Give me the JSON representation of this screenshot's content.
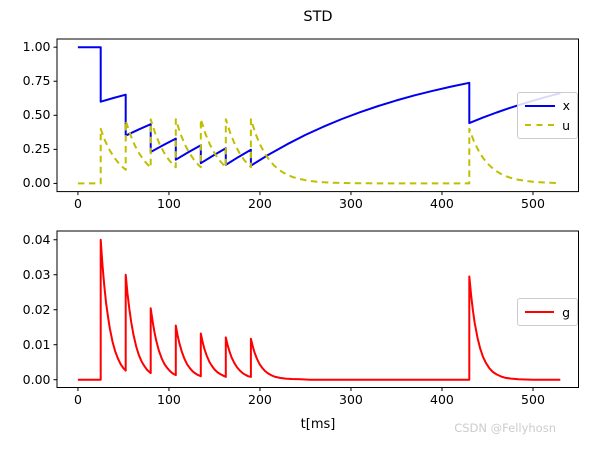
{
  "title": "STD",
  "xlabel": "t[ms]",
  "watermark": "CSDN @Fellyhosn",
  "colors": {
    "x_line": "#0000f0",
    "u_line": "#bfbf00",
    "g_line": "#ff0000",
    "axis": "#000000",
    "watermark": "#cccccc",
    "legend_border": "#cccccc"
  },
  "chart_data": [
    {
      "type": "line",
      "title": "STD",
      "xlabel": "",
      "ylabel": "",
      "xlim": [
        -23,
        550
      ],
      "ylim": [
        -0.06,
        1.06
      ],
      "grid": false,
      "xticks": [
        0,
        100,
        200,
        300,
        400,
        500
      ],
      "xtick_labels": [
        "0",
        "100",
        "200",
        "300",
        "400",
        "500"
      ],
      "yticks": [
        0,
        0.25,
        0.5,
        0.75,
        1.0
      ],
      "ytick_labels": [
        "0.00",
        "0.25",
        "0.50",
        "0.75",
        "1.00"
      ],
      "legend": {
        "position": "center right",
        "entries": [
          {
            "label": "x",
            "color": "#0000f0",
            "dash": "solid"
          },
          {
            "label": "u",
            "color": "#bfbf00",
            "dash": "dashed"
          }
        ]
      },
      "spike_times_ms": [
        25,
        52.5,
        80,
        107.5,
        135,
        162.5,
        190,
        430
      ],
      "series": [
        {
          "name": "x",
          "color": "#0000f0",
          "dash": "solid",
          "points": [
            [
              0,
              1
            ],
            [
              25,
              1
            ],
            [
              25,
              0.6
            ],
            [
              39,
              0.627
            ],
            [
              52.5,
              0.6514
            ],
            [
              52.5,
              0.3513
            ],
            [
              66,
              0.3936
            ],
            [
              80,
              0.4346
            ],
            [
              80,
              0.2304
            ],
            [
              94,
              0.2823
            ],
            [
              107.5,
              0.3293
            ],
            [
              107.5,
              0.1741
            ],
            [
              121,
              0.228
            ],
            [
              135,
              0.2802
            ],
            [
              135,
              0.1481
            ],
            [
              149,
              0.2056
            ],
            [
              162.5,
              0.2575
            ],
            [
              162.5,
              0.1361
            ],
            [
              176,
              0.1925
            ],
            [
              190,
              0.2471
            ],
            [
              190,
              0.1306
            ],
            [
              210,
              0.2133
            ],
            [
              230,
              0.2882
            ],
            [
              250,
              0.356
            ],
            [
              270,
              0.4173
            ],
            [
              290,
              0.4727
            ],
            [
              310,
              0.5229
            ],
            [
              330,
              0.5683
            ],
            [
              350,
              0.6094
            ],
            [
              370,
              0.6465
            ],
            [
              390,
              0.6801
            ],
            [
              410,
              0.7106
            ],
            [
              430,
              0.7382
            ],
            [
              430,
              0.4429
            ],
            [
              445,
              0.4832
            ],
            [
              460,
              0.5205
            ],
            [
              475,
              0.5551
            ],
            [
              490,
              0.5873
            ],
            [
              510,
              0.6266
            ],
            [
              530,
              0.6621
            ]
          ]
        },
        {
          "name": "u",
          "color": "#bfbf00",
          "dash": "dashed",
          "points": [
            [
              0,
              0
            ],
            [
              25,
              0
            ],
            [
              25,
              0.4
            ],
            [
              30,
              0.3115
            ],
            [
              35,
              0.2426
            ],
            [
              40,
              0.189
            ],
            [
              45,
              0.1472
            ],
            [
              50,
              0.1146
            ],
            [
              52.5,
              0.1011
            ],
            [
              52.5,
              0.4607
            ],
            [
              57.5,
              0.3588
            ],
            [
              62.5,
              0.2794
            ],
            [
              67.5,
              0.2176
            ],
            [
              72.5,
              0.1695
            ],
            [
              77.5,
              0.132
            ],
            [
              80,
              0.1165
            ],
            [
              80,
              0.4699
            ],
            [
              85,
              0.366
            ],
            [
              90,
              0.285
            ],
            [
              95,
              0.222
            ],
            [
              100,
              0.1729
            ],
            [
              105,
              0.1346
            ],
            [
              107.5,
              0.1188
            ],
            [
              107.5,
              0.4713
            ],
            [
              112.5,
              0.367
            ],
            [
              117.5,
              0.2859
            ],
            [
              122.5,
              0.2226
            ],
            [
              127.5,
              0.1734
            ],
            [
              132.5,
              0.135
            ],
            [
              135,
              0.1192
            ],
            [
              135,
              0.4715
            ],
            [
              140,
              0.3672
            ],
            [
              145,
              0.286
            ],
            [
              150,
              0.2227
            ],
            [
              155,
              0.1735
            ],
            [
              160,
              0.1351
            ],
            [
              162.5,
              0.1192
            ],
            [
              162.5,
              0.4716
            ],
            [
              167.5,
              0.3673
            ],
            [
              172.5,
              0.2861
            ],
            [
              177.5,
              0.2228
            ],
            [
              182.5,
              0.1735
            ],
            [
              187.5,
              0.1351
            ],
            [
              190,
              0.1192
            ],
            [
              190,
              0.4716
            ],
            [
              195,
              0.3673
            ],
            [
              200,
              0.2861
            ],
            [
              205,
              0.2228
            ],
            [
              210,
              0.1735
            ],
            [
              215,
              0.1351
            ],
            [
              220,
              0.1052
            ],
            [
              225,
              0.082
            ],
            [
              230,
              0.0638
            ],
            [
              235,
              0.0497
            ],
            [
              240,
              0.0387
            ],
            [
              250,
              0.0235
            ],
            [
              260,
              0.0142
            ],
            [
              270,
              0.0086
            ],
            [
              280,
              0.0052
            ],
            [
              290,
              0.0032
            ],
            [
              300,
              0.0019
            ],
            [
              320,
              0.0007
            ],
            [
              340,
              0.0003
            ],
            [
              360,
              0.0001
            ],
            [
              380,
              0
            ],
            [
              430,
              0
            ],
            [
              430,
              0.4
            ],
            [
              435,
              0.3115
            ],
            [
              440,
              0.2426
            ],
            [
              445,
              0.189
            ],
            [
              450,
              0.1472
            ],
            [
              455,
              0.1146
            ],
            [
              460,
              0.0893
            ],
            [
              465,
              0.0695
            ],
            [
              470,
              0.0541
            ],
            [
              475,
              0.0422
            ],
            [
              480,
              0.0328
            ],
            [
              485,
              0.0256
            ],
            [
              490,
              0.0199
            ],
            [
              495,
              0.0155
            ],
            [
              500,
              0.0121
            ],
            [
              510,
              0.0073
            ],
            [
              520,
              0.0044
            ],
            [
              530,
              0.0027
            ]
          ]
        }
      ]
    },
    {
      "type": "line",
      "title": "",
      "xlabel": "t[ms]",
      "ylabel": "",
      "xlim": [
        -23,
        550
      ],
      "ylim": [
        -0.00223,
        0.0425
      ],
      "grid": false,
      "xticks": [
        0,
        100,
        200,
        300,
        400,
        500
      ],
      "xtick_labels": [
        "0",
        "100",
        "200",
        "300",
        "400",
        "500"
      ],
      "yticks": [
        0,
        0.01,
        0.02,
        0.03,
        0.04
      ],
      "ytick_labels": [
        "0.00",
        "0.01",
        "0.02",
        "0.03",
        "0.04"
      ],
      "legend": {
        "position": "center right",
        "entries": [
          {
            "label": "g",
            "color": "#ff0000",
            "dash": "solid"
          }
        ]
      },
      "series": [
        {
          "name": "g",
          "color": "#ff0000",
          "dash": "solid",
          "points": [
            [
              0,
              0
            ],
            [
              25,
              0
            ],
            [
              25,
              0.04
            ],
            [
              27,
              0.0327
            ],
            [
              29,
              0.0268
            ],
            [
              31,
              0.0219
            ],
            [
              33,
              0.018
            ],
            [
              35,
              0.0147
            ],
            [
              38,
              0.0109
            ],
            [
              41,
              0.0081
            ],
            [
              44,
              0.006
            ],
            [
              47,
              0.0044
            ],
            [
              50,
              0.0033
            ],
            [
              52.5,
              0.0026
            ],
            [
              52.5,
              0.03
            ],
            [
              54.5,
              0.0246
            ],
            [
              56.5,
              0.0201
            ],
            [
              58.5,
              0.0165
            ],
            [
              61,
              0.0128
            ],
            [
              64,
              0.0095
            ],
            [
              67,
              0.007
            ],
            [
              70,
              0.0052
            ],
            [
              73,
              0.0039
            ],
            [
              76,
              0.0028
            ],
            [
              80,
              0.0019
            ],
            [
              80,
              0.0204
            ],
            [
              82,
              0.0167
            ],
            [
              84,
              0.0137
            ],
            [
              86,
              0.0112
            ],
            [
              89,
              0.0083
            ],
            [
              92,
              0.0061
            ],
            [
              95,
              0.0045
            ],
            [
              98,
              0.0034
            ],
            [
              101,
              0.0025
            ],
            [
              104,
              0.0018
            ],
            [
              107.5,
              0.0013
            ],
            [
              107.5,
              0.0155
            ],
            [
              109.5,
              0.0127
            ],
            [
              111.5,
              0.0104
            ],
            [
              114,
              0.0081
            ],
            [
              117,
              0.006
            ],
            [
              120,
              0.0044
            ],
            [
              123,
              0.0033
            ],
            [
              126,
              0.0024
            ],
            [
              129,
              0.0018
            ],
            [
              132,
              0.0013
            ],
            [
              135,
              0.001
            ],
            [
              135,
              0.0132
            ],
            [
              137,
              0.0108
            ],
            [
              139,
              0.0088
            ],
            [
              141.5,
              0.0069
            ],
            [
              144.5,
              0.0051
            ],
            [
              147.5,
              0.0038
            ],
            [
              150.5,
              0.0028
            ],
            [
              153.5,
              0.0021
            ],
            [
              157,
              0.0015
            ],
            [
              160,
              0.0011
            ],
            [
              162.5,
              0.0008
            ],
            [
              162.5,
              0.0121
            ],
            [
              164.5,
              0.0099
            ],
            [
              166.5,
              0.0081
            ],
            [
              169,
              0.0063
            ],
            [
              172,
              0.0047
            ],
            [
              175,
              0.0035
            ],
            [
              178,
              0.0026
            ],
            [
              181,
              0.0019
            ],
            [
              184,
              0.0014
            ],
            [
              187,
              0.001
            ],
            [
              190,
              0.0008
            ],
            [
              190,
              0.0117
            ],
            [
              192,
              0.0096
            ],
            [
              194,
              0.0078
            ],
            [
              196.5,
              0.0061
            ],
            [
              199.5,
              0.0045
            ],
            [
              202.5,
              0.0034
            ],
            [
              205.5,
              0.0025
            ],
            [
              209,
              0.0018
            ],
            [
              213,
              0.0012
            ],
            [
              217,
              0.0008
            ],
            [
              222,
              0.0005
            ],
            [
              228,
              0.0003
            ],
            [
              235,
              0.0002
            ],
            [
              245,
              0.0001
            ],
            [
              255,
              0
            ],
            [
              430,
              0
            ],
            [
              430,
              0.0295
            ],
            [
              432,
              0.0242
            ],
            [
              434,
              0.0198
            ],
            [
              436,
              0.0162
            ],
            [
              439,
              0.012
            ],
            [
              442,
              0.0089
            ],
            [
              445,
              0.0066
            ],
            [
              448,
              0.0049
            ],
            [
              452,
              0.0033
            ],
            [
              456,
              0.0022
            ],
            [
              460,
              0.0015
            ],
            [
              465,
              0.0009
            ],
            [
              470,
              0.0005
            ],
            [
              476,
              0.0003
            ],
            [
              484,
              0.0001
            ],
            [
              500,
              0
            ],
            [
              530,
              0
            ]
          ]
        }
      ]
    }
  ]
}
